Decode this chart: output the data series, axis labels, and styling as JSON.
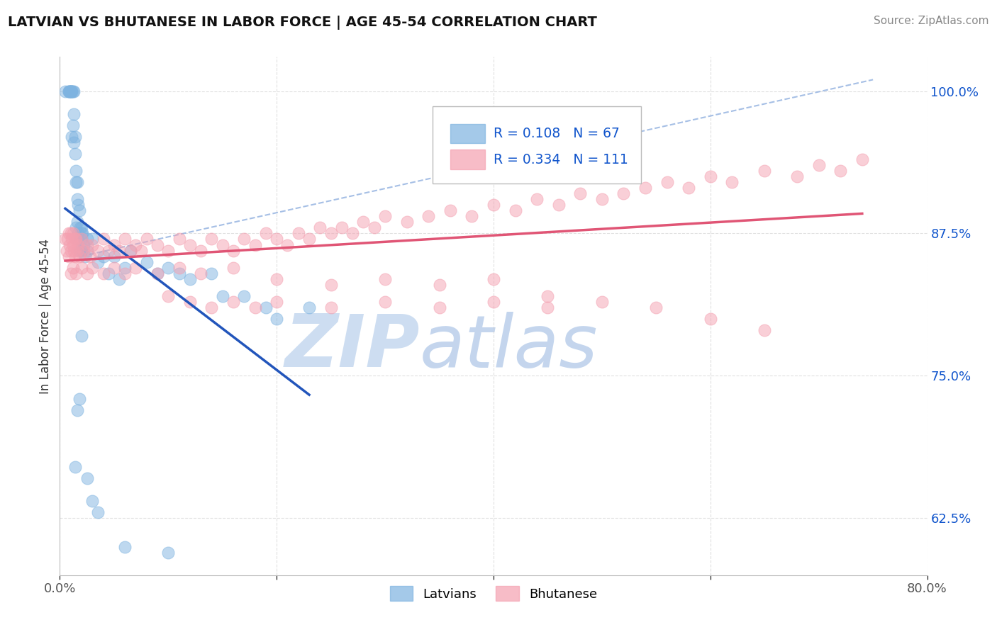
{
  "title": "LATVIAN VS BHUTANESE IN LABOR FORCE | AGE 45-54 CORRELATION CHART",
  "source_text": "Source: ZipAtlas.com",
  "ylabel": "In Labor Force | Age 45-54",
  "xlim": [
    0.0,
    0.8
  ],
  "ylim": [
    0.575,
    1.03
  ],
  "latvian_R": 0.108,
  "latvian_N": 67,
  "bhutanese_R": 0.334,
  "bhutanese_N": 111,
  "latvian_color": "#7eb3e0",
  "bhutanese_color": "#f4a0b0",
  "latvian_line_color": "#2255bb",
  "bhutanese_line_color": "#e05575",
  "dashed_line_color": "#88aadd",
  "legend_R_color": "#1155cc",
  "watermark_color": "#d0dff0",
  "grid_color": "#cccccc",
  "latvian_x": [
    0.005,
    0.008,
    0.008,
    0.009,
    0.009,
    0.01,
    0.01,
    0.01,
    0.011,
    0.011,
    0.011,
    0.012,
    0.012,
    0.013,
    0.013,
    0.013,
    0.014,
    0.014,
    0.015,
    0.015,
    0.015,
    0.016,
    0.016,
    0.016,
    0.016,
    0.017,
    0.017,
    0.018,
    0.018,
    0.019,
    0.02,
    0.02,
    0.02,
    0.02,
    0.021,
    0.022,
    0.023,
    0.025,
    0.025,
    0.03,
    0.035,
    0.04,
    0.045,
    0.05,
    0.055,
    0.06,
    0.065,
    0.08,
    0.09,
    0.1,
    0.11,
    0.12,
    0.14,
    0.15,
    0.17,
    0.19,
    0.2,
    0.23,
    0.02,
    0.018,
    0.016,
    0.014,
    0.025,
    0.03,
    0.035,
    0.06,
    0.1
  ],
  "latvian_y": [
    1.0,
    1.0,
    1.0,
    1.0,
    1.0,
    1.0,
    1.0,
    1.0,
    1.0,
    1.0,
    0.96,
    1.0,
    0.97,
    1.0,
    0.98,
    0.955,
    0.96,
    0.945,
    0.93,
    0.92,
    0.88,
    0.92,
    0.905,
    0.885,
    0.87,
    0.9,
    0.875,
    0.895,
    0.86,
    0.88,
    0.88,
    0.875,
    0.87,
    0.86,
    0.875,
    0.865,
    0.855,
    0.87,
    0.86,
    0.87,
    0.85,
    0.855,
    0.84,
    0.855,
    0.835,
    0.845,
    0.86,
    0.85,
    0.84,
    0.845,
    0.84,
    0.835,
    0.84,
    0.82,
    0.82,
    0.81,
    0.8,
    0.81,
    0.785,
    0.73,
    0.72,
    0.67,
    0.66,
    0.64,
    0.63,
    0.6,
    0.595
  ],
  "bhutanese_x": [
    0.005,
    0.006,
    0.007,
    0.008,
    0.008,
    0.009,
    0.01,
    0.01,
    0.011,
    0.012,
    0.012,
    0.013,
    0.014,
    0.014,
    0.015,
    0.016,
    0.017,
    0.018,
    0.02,
    0.022,
    0.025,
    0.028,
    0.03,
    0.035,
    0.04,
    0.045,
    0.05,
    0.055,
    0.06,
    0.065,
    0.07,
    0.075,
    0.08,
    0.09,
    0.1,
    0.11,
    0.12,
    0.13,
    0.14,
    0.15,
    0.16,
    0.17,
    0.18,
    0.19,
    0.2,
    0.21,
    0.22,
    0.23,
    0.24,
    0.25,
    0.26,
    0.27,
    0.28,
    0.29,
    0.3,
    0.32,
    0.34,
    0.36,
    0.38,
    0.4,
    0.42,
    0.44,
    0.46,
    0.48,
    0.5,
    0.52,
    0.54,
    0.56,
    0.58,
    0.6,
    0.62,
    0.65,
    0.68,
    0.7,
    0.72,
    0.74,
    0.01,
    0.012,
    0.015,
    0.02,
    0.025,
    0.03,
    0.04,
    0.05,
    0.06,
    0.07,
    0.09,
    0.11,
    0.13,
    0.16,
    0.2,
    0.25,
    0.3,
    0.35,
    0.4,
    0.45,
    0.5,
    0.55,
    0.6,
    0.65,
    0.1,
    0.12,
    0.14,
    0.16,
    0.18,
    0.2,
    0.25,
    0.3,
    0.35,
    0.4,
    0.45
  ],
  "bhutanese_y": [
    0.87,
    0.86,
    0.87,
    0.875,
    0.855,
    0.865,
    0.875,
    0.86,
    0.87,
    0.865,
    0.875,
    0.86,
    0.87,
    0.855,
    0.87,
    0.86,
    0.865,
    0.855,
    0.87,
    0.86,
    0.865,
    0.855,
    0.865,
    0.86,
    0.87,
    0.86,
    0.865,
    0.86,
    0.87,
    0.86,
    0.865,
    0.86,
    0.87,
    0.865,
    0.86,
    0.87,
    0.865,
    0.86,
    0.87,
    0.865,
    0.86,
    0.87,
    0.865,
    0.875,
    0.87,
    0.865,
    0.875,
    0.87,
    0.88,
    0.875,
    0.88,
    0.875,
    0.885,
    0.88,
    0.89,
    0.885,
    0.89,
    0.895,
    0.89,
    0.9,
    0.895,
    0.905,
    0.9,
    0.91,
    0.905,
    0.91,
    0.915,
    0.92,
    0.915,
    0.925,
    0.92,
    0.93,
    0.925,
    0.935,
    0.93,
    0.94,
    0.84,
    0.845,
    0.84,
    0.845,
    0.84,
    0.845,
    0.84,
    0.845,
    0.84,
    0.845,
    0.84,
    0.845,
    0.84,
    0.845,
    0.835,
    0.83,
    0.835,
    0.83,
    0.835,
    0.82,
    0.815,
    0.81,
    0.8,
    0.79,
    0.82,
    0.815,
    0.81,
    0.815,
    0.81,
    0.815,
    0.81,
    0.815,
    0.81,
    0.815,
    0.81
  ]
}
